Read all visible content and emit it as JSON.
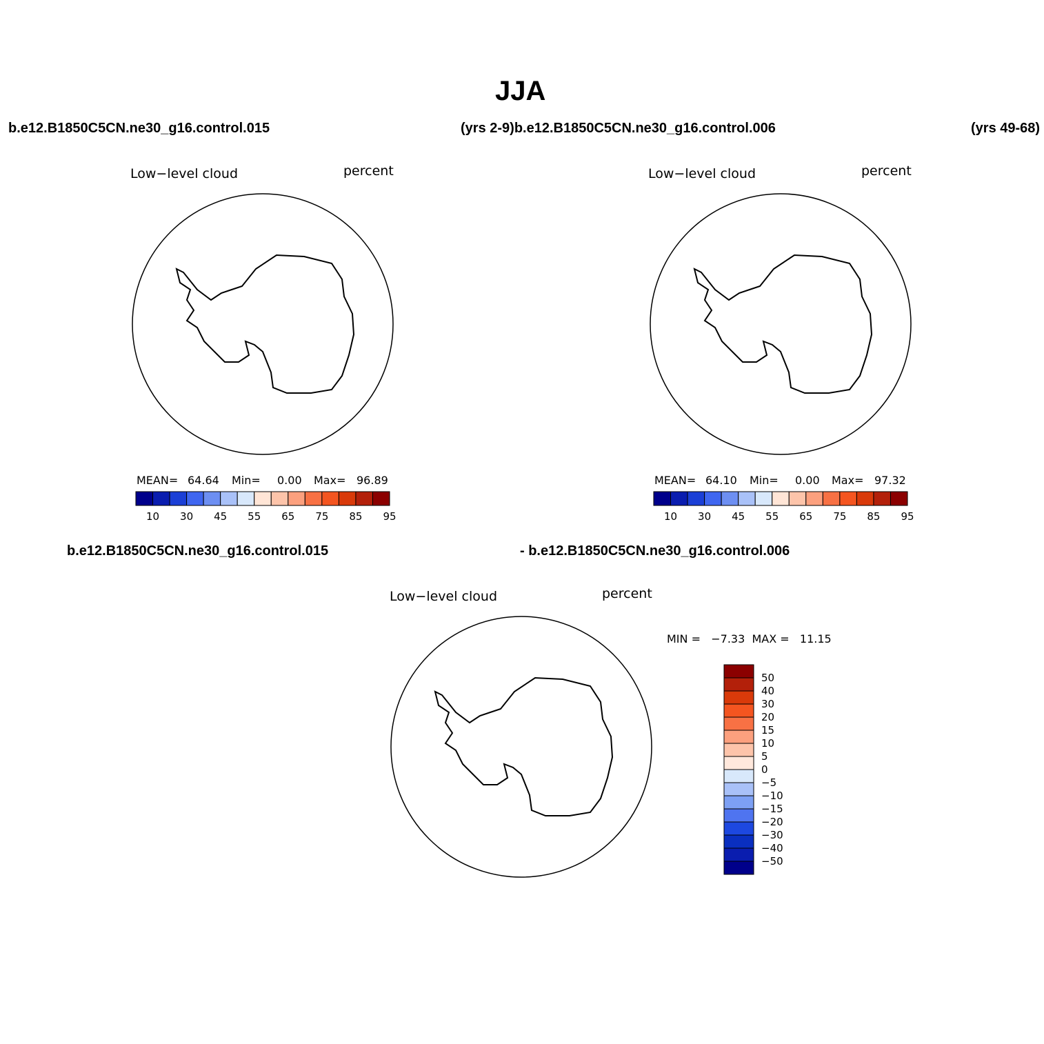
{
  "figure": {
    "title": "JJA",
    "top_left_case": "b.e12.B1850C5CN.ne30_g16.control.015",
    "top_middle_case": "(yrs 2-9)b.e12.B1850C5CN.ne30_g16.control.006",
    "top_right_case": "(yrs 49-68)",
    "bottom_left_case": "b.e12.B1850C5CN.ne30_g16.control.015",
    "bottom_right_case": "- b.e12.B1850C5CN.ne30_g16.control.006"
  },
  "panels": [
    {
      "variable": "Low−level cloud",
      "units": "percent",
      "mean_label": "MEAN=",
      "mean": "64.64",
      "min_label": "Min=",
      "min": "0.00",
      "max_label": "Max=",
      "max": "96.89"
    },
    {
      "variable": "Low−level cloud",
      "units": "percent",
      "mean_label": "MEAN=",
      "mean": "64.10",
      "min_label": "Min=",
      "min": "0.00",
      "max_label": "Max=",
      "max": "97.32"
    },
    {
      "variable": "Low−level cloud",
      "units": "percent",
      "minmax_text": "MIN =   −7.33  MAX =   11.15"
    }
  ],
  "colorbar_abs": {
    "colors": [
      "#00008B",
      "#0A1DAF",
      "#1B3FD6",
      "#3F66F0",
      "#6D8FF2",
      "#A9C1F8",
      "#D8E8FB",
      "#FFE5D6",
      "#FDC4AA",
      "#FCA07E",
      "#F87144",
      "#F45520",
      "#D93A0A",
      "#B3200A",
      "#8B0000"
    ],
    "tick_labels": [
      "10",
      "30",
      "45",
      "55",
      "65",
      "75",
      "85",
      "95"
    ]
  },
  "colorbar_diff": {
    "colors": [
      "#8B0000",
      "#B3200A",
      "#D93A0A",
      "#F45520",
      "#F87144",
      "#FCA07E",
      "#FDC4AA",
      "#FFE8DC",
      "#D8E8FB",
      "#A9C1F8",
      "#7DA0F4",
      "#4F74F0",
      "#1D48E0",
      "#0A2FC0",
      "#0A1DAF",
      "#00008B"
    ],
    "tick_labels": [
      "50",
      "40",
      "30",
      "20",
      "15",
      "10",
      "5",
      "0",
      "−5",
      "−10",
      "−15",
      "−20",
      "−30",
      "−40",
      "−50"
    ]
  }
}
